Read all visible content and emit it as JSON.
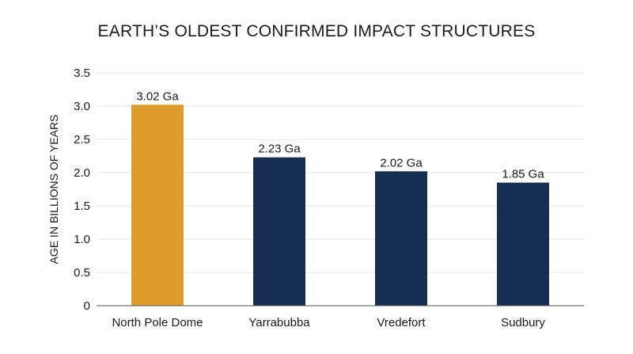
{
  "chart_data": {
    "type": "bar",
    "title": "EARTH’S OLDEST CONFIRMED IMPACT STRUCTURES",
    "xlabel": "",
    "ylabel": "AGE IN BILLIONS OF YEARS",
    "categories": [
      "North Pole Dome",
      "Yarrabubba",
      "Vredefort",
      "Sudbury"
    ],
    "values": [
      3.02,
      2.23,
      2.02,
      1.85
    ],
    "data_labels": [
      "3.02 Ga",
      "2.23 Ga",
      "2.02 Ga",
      "1.85 Ga"
    ],
    "bar_colors": [
      "#DD9A2D",
      "#172D52",
      "#172D52",
      "#172D52"
    ],
    "ylim": [
      0,
      3.5
    ],
    "yticks": [
      0,
      0.5,
      1.0,
      1.5,
      2.0,
      2.5,
      3.0,
      3.5
    ],
    "ytick_labels": [
      "0",
      "0.5",
      "1.0",
      "1.5",
      "2.0",
      "2.5",
      "3.0",
      "3.5"
    ],
    "grid": true,
    "legend": "none"
  }
}
